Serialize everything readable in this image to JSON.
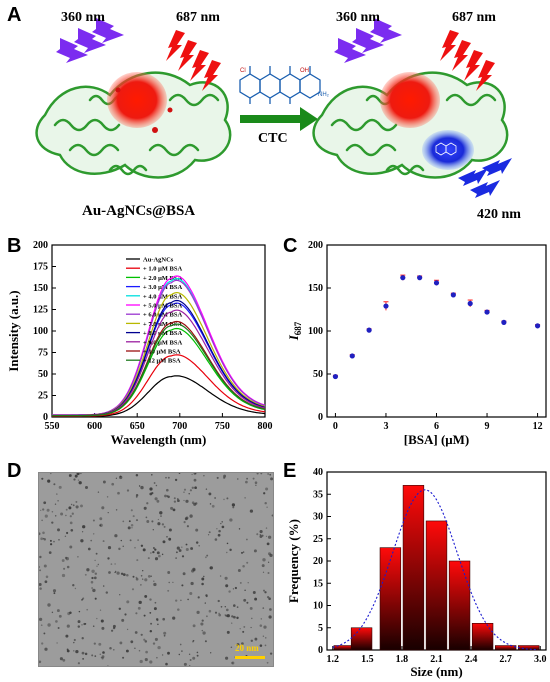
{
  "panels": {
    "a": "A",
    "b": "B",
    "c": "C",
    "d": "D",
    "e": "E"
  },
  "schematic": {
    "left_excitation": "360 nm",
    "left_emission": "687 nm",
    "right_excitation": "360 nm",
    "right_emission": "687 nm",
    "arrow_label": "CTC",
    "new_emission": "420 nm",
    "probe_label": "Au-AgNCs@BSA"
  },
  "tem": {
    "scale_bar": "20 nm"
  },
  "chart_data": [
    {
      "id": "B",
      "type": "line",
      "xlabel": "Wavelength (nm)",
      "ylabel": "Intensity (a.u.)",
      "xlim": [
        550,
        800
      ],
      "ylim": [
        0,
        200
      ],
      "xticks": [
        550,
        600,
        650,
        700,
        750,
        800
      ],
      "yticks": [
        0,
        25,
        50,
        75,
        100,
        125,
        150,
        175,
        200
      ],
      "peak_wavelength": 690,
      "series": [
        {
          "name": "Au-AgNCs",
          "peak": 47,
          "color": "#000000"
        },
        {
          "name": "+ 1.0 μM BSA",
          "peak": 71,
          "color": "#e8000b"
        },
        {
          "name": "+ 2.0 μM BSA",
          "peak": 101,
          "color": "#00c000"
        },
        {
          "name": "+ 3.0 μM BSA",
          "peak": 130,
          "color": "#1a1aff"
        },
        {
          "name": "+ 4.0 μM BSA",
          "peak": 158,
          "color": "#00e0e0"
        },
        {
          "name": "+ 5.0 μM BSA",
          "peak": 161,
          "color": "#ff00ff"
        },
        {
          "name": "+ 6.0 μM BSA",
          "peak": 156,
          "color": "#9a35d0"
        },
        {
          "name": "+ 7.0 μM BSA",
          "peak": 142,
          "color": "#b8b800"
        },
        {
          "name": "+ 8.0 μM BSA",
          "peak": 133,
          "color": "#000090"
        },
        {
          "name": "+ 9.0 μM BSA",
          "peak": 122,
          "color": "#9b1fa0"
        },
        {
          "name": "+ 10 μM BSA",
          "peak": 109,
          "color": "#9a1010"
        },
        {
          "name": "+ 12 μM BSA",
          "peak": 106,
          "color": "#1e7a1e"
        }
      ]
    },
    {
      "id": "C",
      "type": "scatter",
      "xlabel": "[BSA] (μM)",
      "ylabel_main": "I",
      "ylabel_sub": "687",
      "xlim": [
        -0.5,
        12.5
      ],
      "ylim": [
        0,
        200
      ],
      "xticks": [
        0,
        3,
        6,
        9,
        12
      ],
      "yticks": [
        0,
        50,
        100,
        150,
        200
      ],
      "x": [
        0,
        1,
        2,
        3,
        4,
        5,
        6,
        7,
        8,
        9,
        10,
        12
      ],
      "y": [
        47,
        71,
        101,
        129,
        162,
        162,
        156,
        142,
        132,
        122,
        110,
        106
      ],
      "err": [
        1.5,
        1.5,
        1.5,
        5,
        3,
        2,
        3,
        2,
        4,
        2,
        1.5,
        1.5
      ]
    },
    {
      "id": "E",
      "type": "bar",
      "xlabel": "Size (nm)",
      "ylabel": "Frequency (%)",
      "xlim": [
        1.15,
        3.05
      ],
      "ylim": [
        0,
        40
      ],
      "xticks": [
        1.2,
        1.5,
        1.8,
        2.1,
        2.4,
        2.7,
        3.0
      ],
      "yticks": [
        0,
        5,
        10,
        15,
        20,
        25,
        30,
        35,
        40
      ],
      "x": [
        1.3,
        1.45,
        1.7,
        1.9,
        2.1,
        2.3,
        2.5,
        2.7,
        2.9
      ],
      "values": [
        1,
        5,
        23,
        37,
        29,
        20,
        6,
        1,
        1
      ],
      "fit_center": 2.0,
      "fit_sigma": 0.28,
      "fit_peak": 36
    }
  ]
}
